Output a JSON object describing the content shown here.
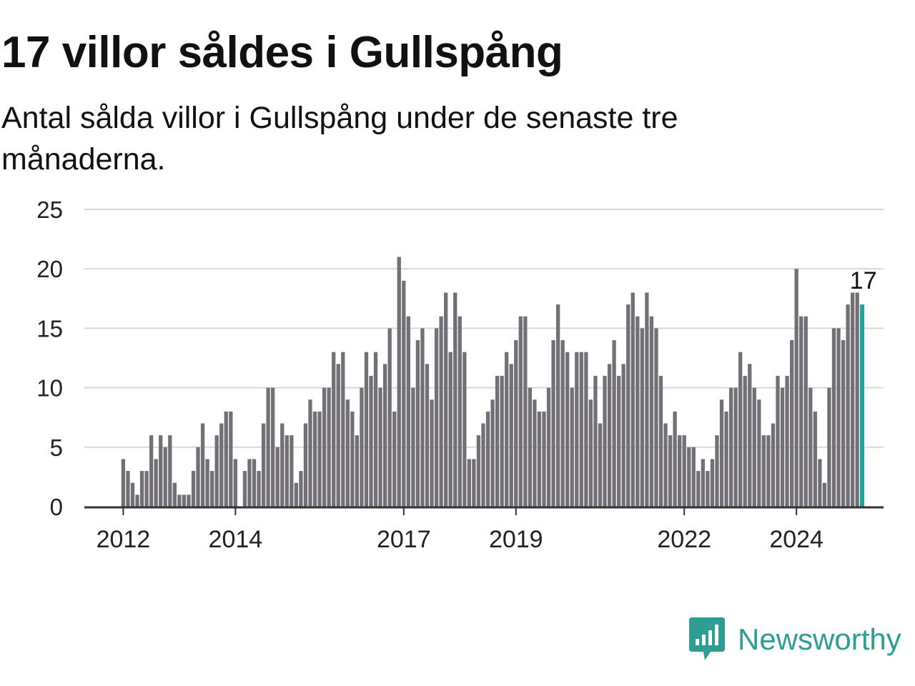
{
  "title": "17 villor såldes i Gullspång",
  "subtitle": "Antal sålda villor i Gullspång under de senaste tre månaderna.",
  "brand": {
    "name": "Newsworthy",
    "icon": "newsworthy-logo-icon",
    "color": "#2e9e93"
  },
  "colors": {
    "bar": "#727076",
    "highlight": "#1aa596",
    "grid": "#d9d9d9",
    "axis": "#333333"
  },
  "chart_data": {
    "type": "bar",
    "title": "",
    "xlabel": "",
    "ylabel": "",
    "ylim": [
      0,
      25
    ],
    "yticks": [
      0,
      5,
      10,
      15,
      20,
      25
    ],
    "xticks": [
      {
        "label": "2012",
        "index": 0
      },
      {
        "label": "2014",
        "index": 24
      },
      {
        "label": "2017",
        "index": 60
      },
      {
        "label": "2019",
        "index": 84
      },
      {
        "label": "2022",
        "index": 120
      },
      {
        "label": "2024",
        "index": 144
      }
    ],
    "grid": true,
    "last_value_label": "17",
    "values": [
      4,
      3,
      2,
      1,
      3,
      3,
      6,
      4,
      6,
      5,
      6,
      2,
      1,
      1,
      1,
      3,
      5,
      7,
      4,
      3,
      6,
      7,
      8,
      8,
      4,
      0,
      3,
      4,
      4,
      3,
      7,
      10,
      10,
      5,
      7,
      6,
      6,
      2,
      3,
      7,
      9,
      8,
      8,
      10,
      10,
      13,
      12,
      13,
      9,
      8,
      6,
      10,
      13,
      11,
      13,
      10,
      12,
      15,
      8,
      21,
      19,
      16,
      10,
      14,
      15,
      12,
      9,
      15,
      16,
      18,
      13,
      18,
      16,
      13,
      4,
      4,
      6,
      7,
      8,
      9,
      11,
      11,
      13,
      12,
      14,
      16,
      16,
      10,
      9,
      8,
      8,
      10,
      14,
      17,
      14,
      13,
      10,
      13,
      13,
      13,
      9,
      11,
      7,
      11,
      12,
      14,
      11,
      12,
      17,
      18,
      16,
      15,
      18,
      16,
      15,
      11,
      7,
      6,
      8,
      6,
      6,
      5,
      5,
      3,
      4,
      3,
      4,
      6,
      9,
      8,
      10,
      10,
      13,
      11,
      12,
      10,
      9,
      6,
      6,
      7,
      11,
      10,
      11,
      14,
      20,
      16,
      16,
      10,
      8,
      4,
      2,
      10,
      15,
      15,
      14,
      17,
      18,
      18,
      17
    ]
  }
}
